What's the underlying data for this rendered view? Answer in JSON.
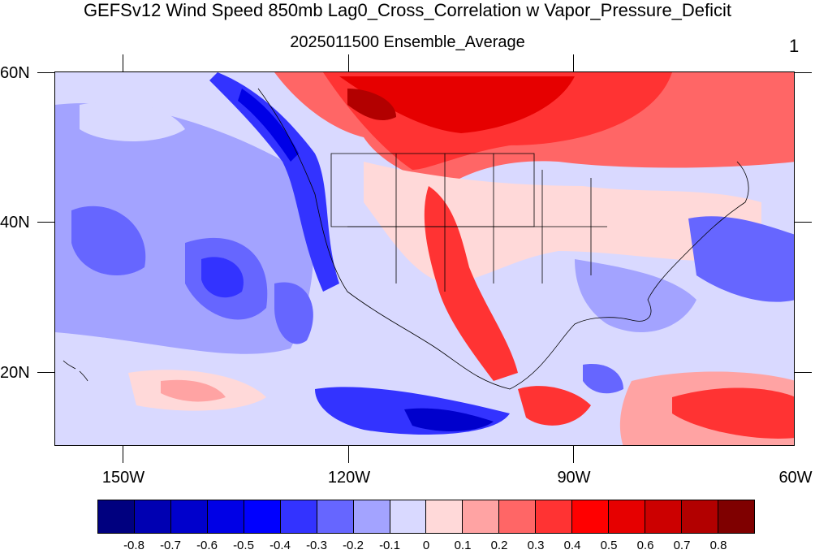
{
  "header": {
    "title": "GEFSv12 Wind Speed 850mb Lag0_Cross_Correlation w Vapor_Pressure_Deficit",
    "subtitle": "2025011500 Ensemble_Average",
    "ensemble_number": "1"
  },
  "axes": {
    "lat_labels": [
      "60N",
      "40N",
      "20N"
    ],
    "lon_labels": [
      "150W",
      "120W",
      "90W",
      "60W"
    ]
  },
  "colorbar": {
    "colors": [
      "#00007f",
      "#0000b2",
      "#0000cc",
      "#0000e6",
      "#0000ff",
      "#3333ff",
      "#6666ff",
      "#a3a3ff",
      "#d9d9ff",
      "#ffd9d9",
      "#ffa3a3",
      "#ff6666",
      "#ff3333",
      "#ff0000",
      "#e60000",
      "#cc0000",
      "#b20000",
      "#7f0000"
    ],
    "labels": [
      "-0.8",
      "-0.7",
      "-0.6",
      "-0.5",
      "-0.4",
      "-0.3",
      "-0.2",
      "-0.1",
      "0",
      "0.1",
      "0.2",
      "0.3",
      "0.4",
      "0.5",
      "0.6",
      "0.7",
      "0.8"
    ]
  }
}
